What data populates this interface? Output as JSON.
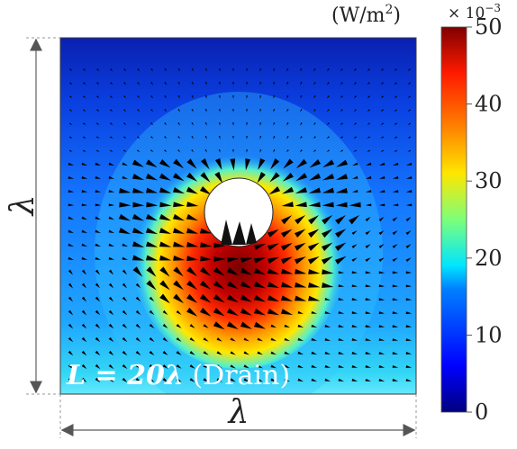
{
  "figure": {
    "colorbar": {
      "unit": "(W/m",
      "unit_exp": "2",
      "unit_close": ")",
      "multiplier": "× 10",
      "multiplier_exp": "−3",
      "ticks": [
        "0",
        "10",
        "20",
        "30",
        "40",
        "50"
      ],
      "range": [
        0,
        50
      ]
    },
    "left_dimension_label": "λ",
    "bottom_dimension_label": "λ",
    "case_label": {
      "prefix": "L = 20λ",
      "suffix": " (Drain)"
    },
    "colors": {
      "background_low": "#0a2fd0",
      "field_mid": "#1fb8ea",
      "hot_core": "#8a0000",
      "arrow": "#000000",
      "dimension_line": "#888888"
    }
  }
}
